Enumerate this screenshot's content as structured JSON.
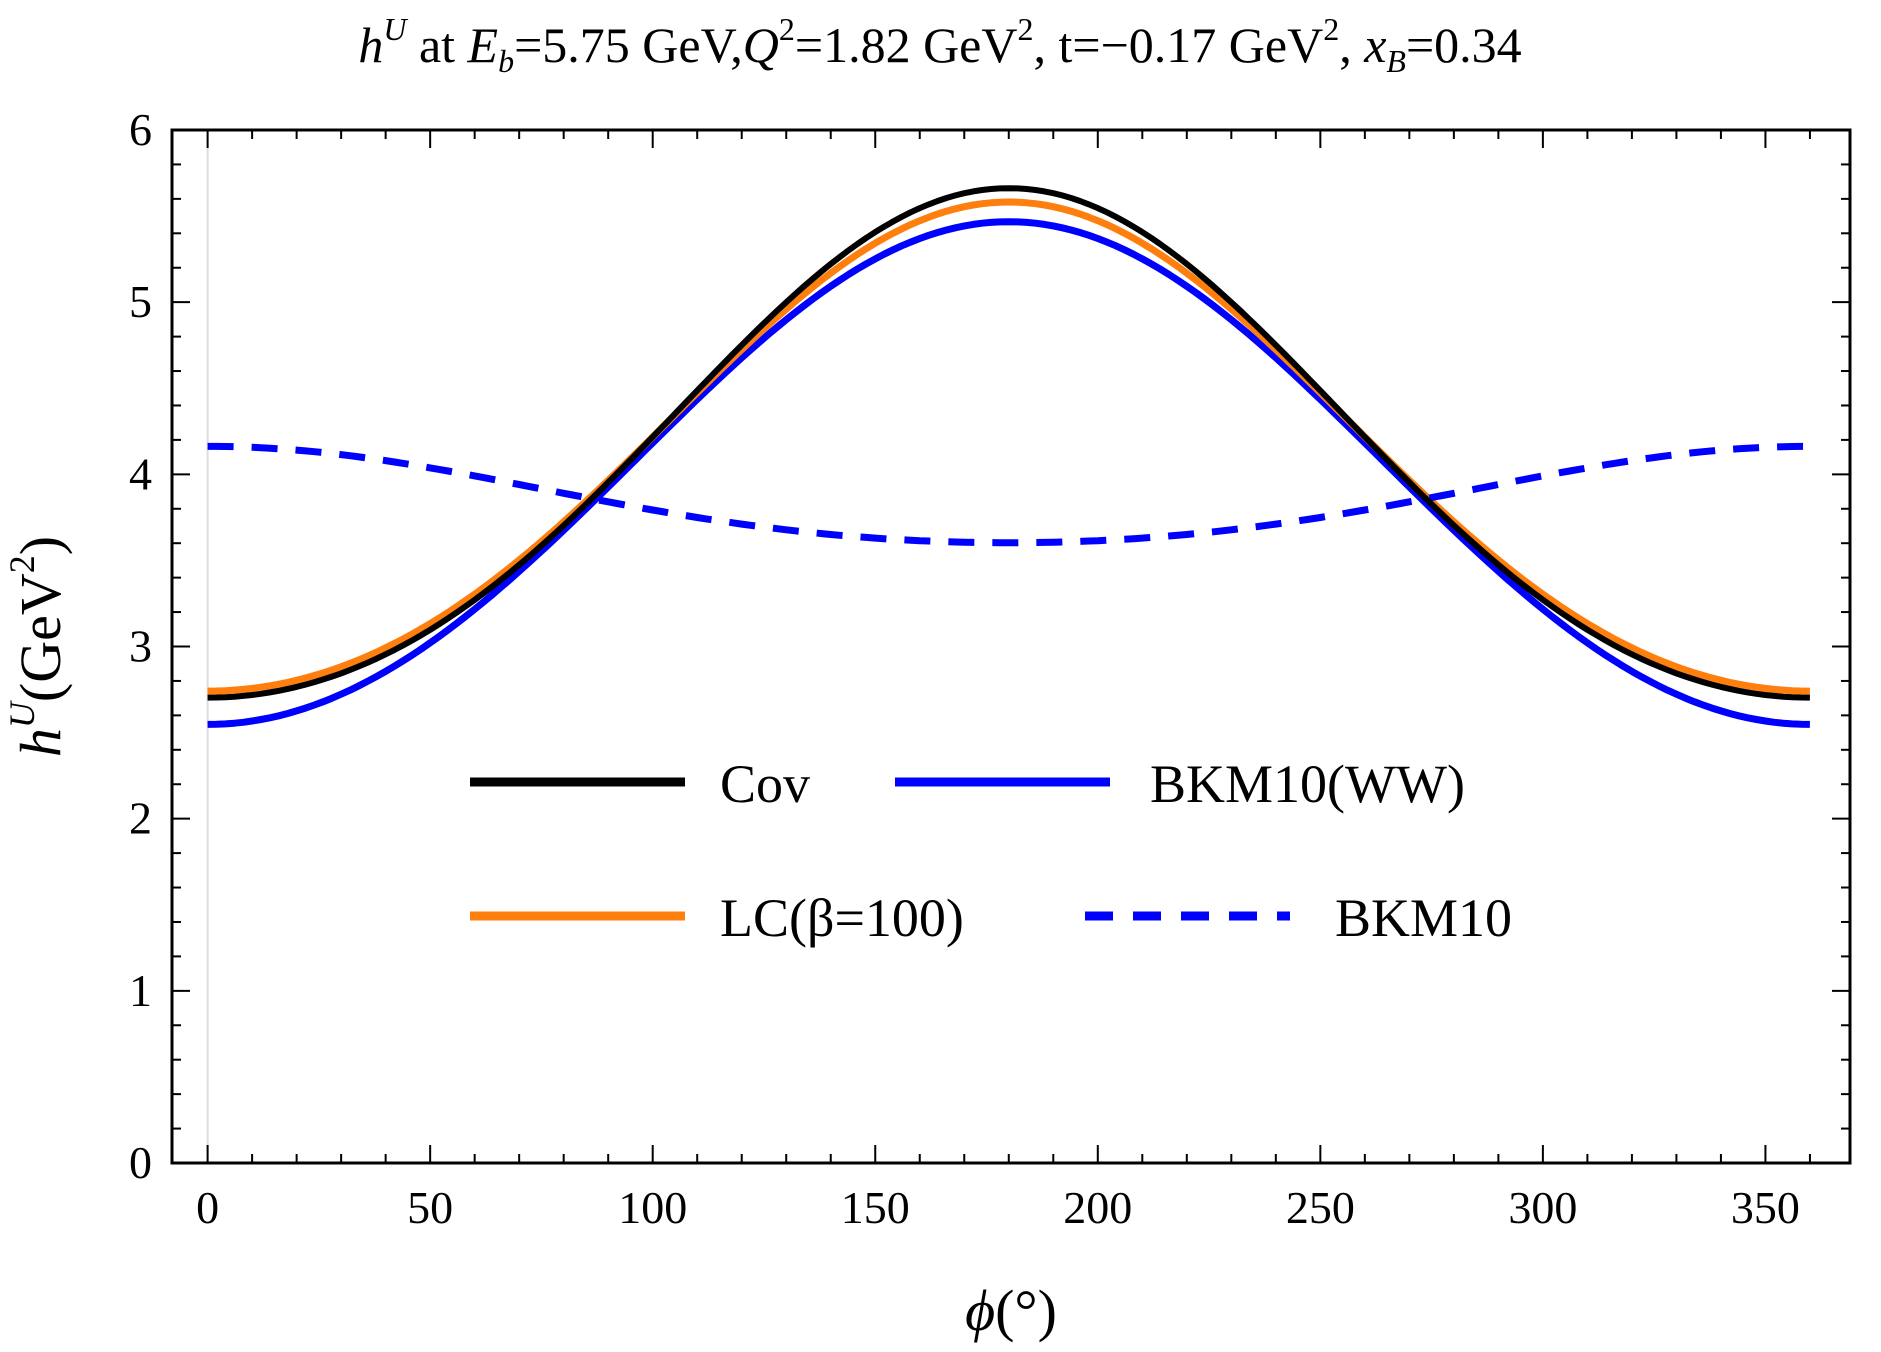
{
  "chart_data": {
    "type": "line",
    "title": {
      "h": "h",
      "h_sup": "U",
      "at": " at ",
      "E": "E",
      "E_sub": "b",
      "eb_value": "=5.75 GeV,",
      "Q": "Q",
      "Q_sup": "2",
      "q2_value": "=1.82 GeV",
      "q2_unit_sup": "2",
      "t_value": ", t=−0.17 GeV",
      "t_unit_sup": "2",
      "x_sep": ", ",
      "x": "x",
      "x_sub": "B",
      "xb_value": "=0.34"
    },
    "xlabel": {
      "phi": "ϕ",
      "unit": "(°)"
    },
    "ylabel": {
      "h": "h",
      "h_sup": "U",
      "unit": "(GeV",
      "unit_sup": "2",
      "unit_close": ")"
    },
    "xlim": [
      -8,
      369
    ],
    "ylim": [
      0,
      6
    ],
    "x_ticks": [
      0,
      50,
      100,
      150,
      200,
      250,
      300,
      350
    ],
    "y_ticks": [
      0,
      1,
      2,
      3,
      4,
      5,
      6
    ],
    "x_minor_step": 10,
    "y_minor_step": 0.2,
    "x_domain": [
      0,
      360
    ],
    "series": [
      {
        "name": "Cov",
        "color": "#000000",
        "dash": "solid",
        "phi": [
          0,
          30,
          60,
          90,
          120,
          150,
          180,
          210,
          240,
          270,
          300,
          330,
          360
        ],
        "values": [
          2.69,
          2.85,
          3.28,
          3.97,
          4.73,
          5.37,
          5.74,
          5.37,
          4.73,
          3.97,
          3.28,
          2.85,
          2.69
        ]
      },
      {
        "name": "LC(β=100)",
        "color": "#ff7f0e",
        "dash": "solid",
        "phi": [
          0,
          30,
          60,
          90,
          120,
          150,
          180,
          210,
          240,
          270,
          300,
          330,
          360
        ],
        "values": [
          2.72,
          2.89,
          3.33,
          3.97,
          4.7,
          5.31,
          5.66,
          5.31,
          4.7,
          3.97,
          3.33,
          2.89,
          2.72
        ]
      },
      {
        "name": "BKM10(WW)",
        "color": "#0000ff",
        "dash": "solid",
        "phi": [
          0,
          30,
          60,
          90,
          120,
          150,
          180,
          210,
          240,
          270,
          300,
          330,
          360
        ],
        "values": [
          2.54,
          2.73,
          3.21,
          3.95,
          4.66,
          5.22,
          5.53,
          5.22,
          4.66,
          3.95,
          3.21,
          2.73,
          2.54
        ]
      },
      {
        "name": "BKM10",
        "color": "#0000ff",
        "dash": "dashed",
        "phi": [
          0,
          30,
          60,
          90,
          120,
          150,
          180,
          210,
          240,
          270,
          300,
          330,
          360
        ],
        "values": [
          4.18,
          4.11,
          3.96,
          3.85,
          3.73,
          3.63,
          3.58,
          3.63,
          3.73,
          3.85,
          3.96,
          4.11,
          4.18
        ]
      }
    ],
    "legend": {
      "placement": "center",
      "entries": [
        {
          "label": "Cov",
          "series": 0
        },
        {
          "label": "BKM10(WW)",
          "series": 2
        },
        {
          "label": "LC(β=100)",
          "series": 1
        },
        {
          "label": "BKM10",
          "series": 3
        }
      ]
    }
  }
}
